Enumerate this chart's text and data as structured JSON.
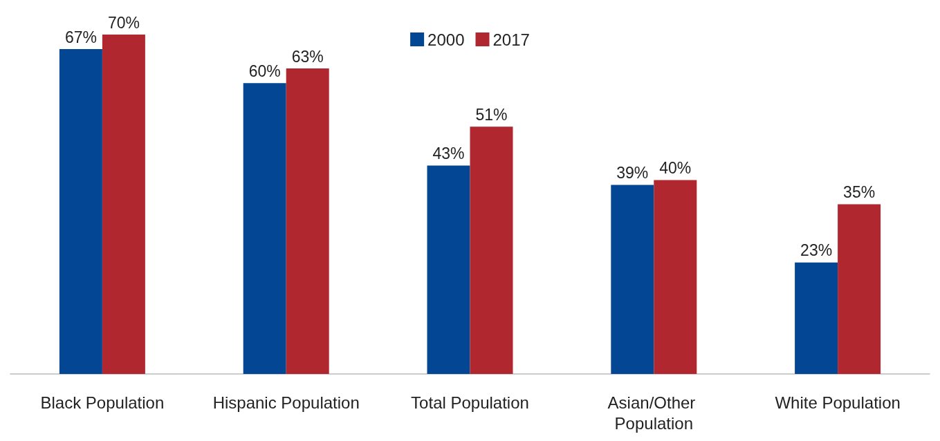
{
  "chart_data": {
    "type": "bar",
    "categories": [
      "Black Population",
      "Hispanic Population",
      "Total Population",
      "Asian/Other Population",
      "White Population"
    ],
    "series": [
      {
        "name": "2000",
        "color": "#034694",
        "values": [
          67,
          60,
          43,
          39,
          23
        ],
        "value_labels": [
          "67%",
          "60%",
          "43%",
          "39%",
          "23%"
        ]
      },
      {
        "name": "2017",
        "color": "#b0272f",
        "values": [
          70,
          63,
          51,
          40,
          35
        ],
        "value_labels": [
          "70%",
          "63%",
          "51%",
          "40%",
          "35%"
        ]
      }
    ],
    "legend": "top"
  }
}
